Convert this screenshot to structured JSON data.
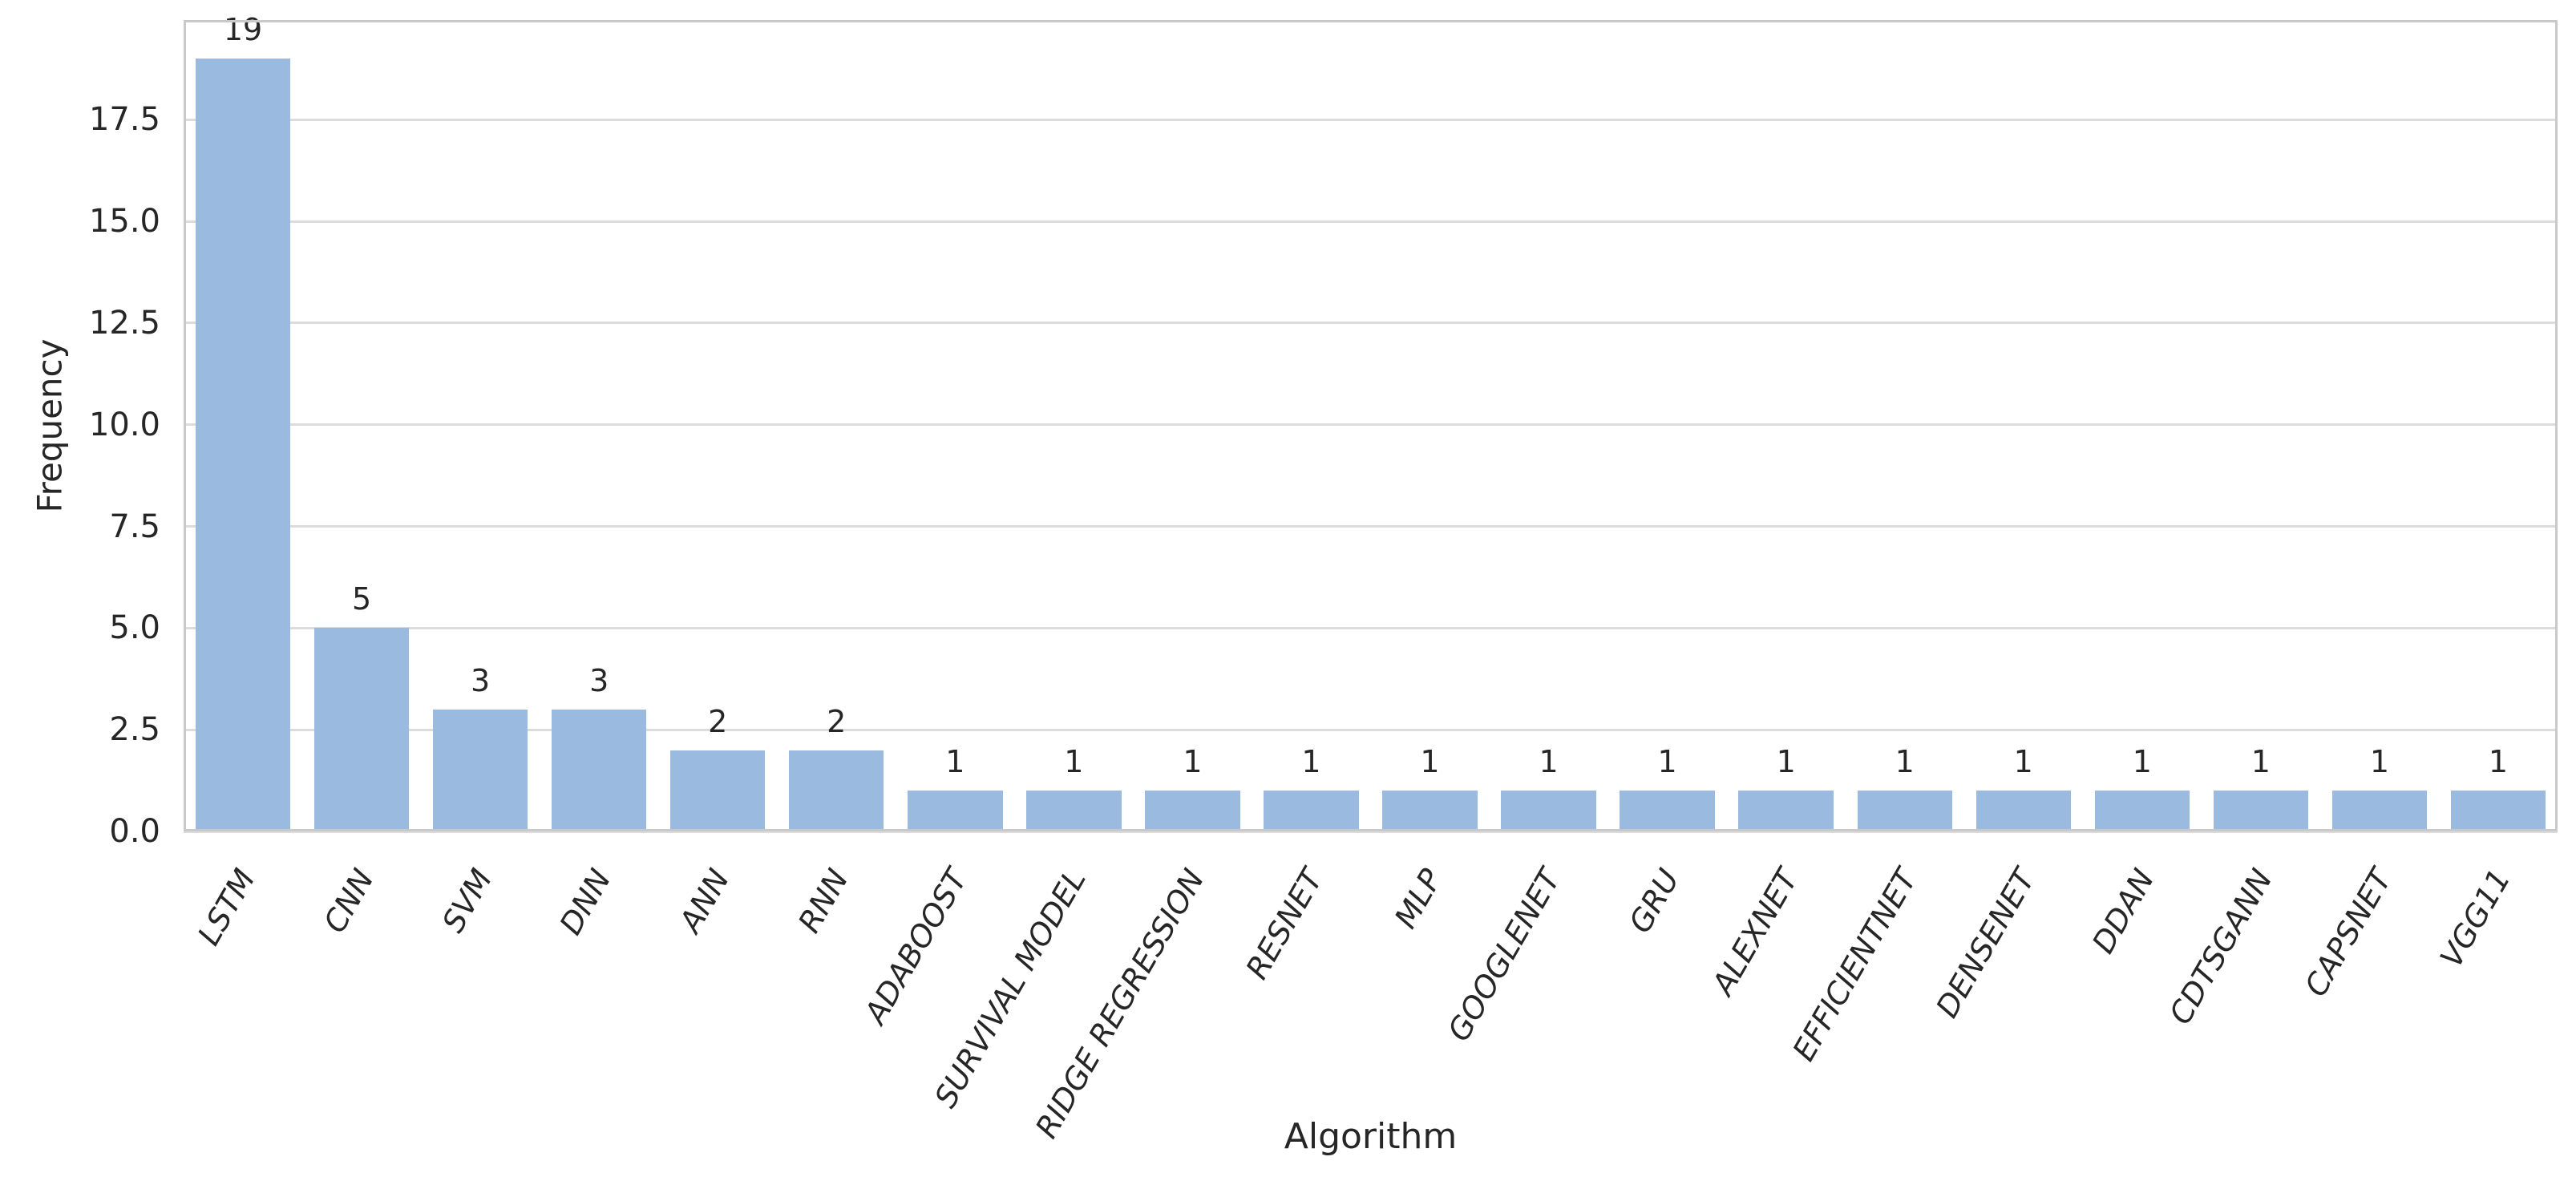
{
  "chart_data": {
    "type": "bar",
    "title": "",
    "xlabel": "Algorithm",
    "ylabel": "Frequency",
    "categories": [
      "LSTM",
      "CNN",
      "SVM",
      "DNN",
      "ANN",
      "RNN",
      "ADABOOST",
      "SURVIVAL MODEL",
      "RIDGE REGRESSION",
      "RESNET",
      "MLP",
      "GOOGLENET",
      "GRU",
      "ALEXNET",
      "EFFICIENTNET",
      "DENSENET",
      "DDAN",
      "CDTSGANN",
      "CAPSNET",
      "VGG11"
    ],
    "values": [
      19,
      5,
      3,
      3,
      2,
      2,
      1,
      1,
      1,
      1,
      1,
      1,
      1,
      1,
      1,
      1,
      1,
      1,
      1,
      1
    ],
    "bar_value_labels": [
      "19",
      "5",
      "3",
      "3",
      "2",
      "2",
      "1",
      "1",
      "1",
      "1",
      "1",
      "1",
      "1",
      "1",
      "1",
      "1",
      "1",
      "1",
      "1",
      "1"
    ],
    "yticks": [
      0,
      2.5,
      5,
      7.5,
      10,
      12.5,
      15,
      17.5
    ],
    "ytick_labels": [
      "0.0",
      "2.5",
      "5.0",
      "7.5",
      "10.0",
      "12.5",
      "15.0",
      "17.5"
    ],
    "ylim": [
      0,
      19.95
    ],
    "grid": "horizontal",
    "legend_position": "none",
    "x_tick_rotation_deg": 60,
    "bar_width_fraction": 0.8,
    "colors": {
      "bar_fill": "#9bbadf",
      "grid_line": "#dcdcdc",
      "spine": "#c9c9c9",
      "text": "#262626",
      "background": "#ffffff"
    }
  }
}
